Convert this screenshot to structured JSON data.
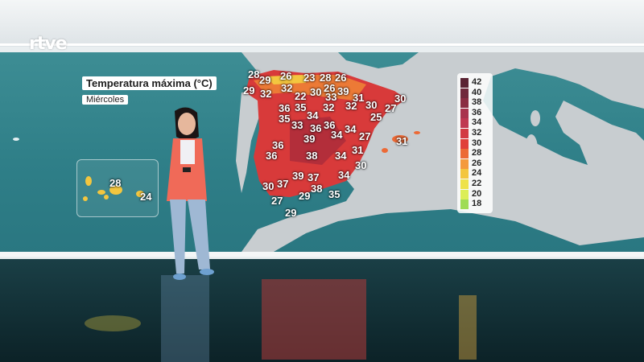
{
  "brand": {
    "logo": "rtve"
  },
  "map": {
    "title": "Temperatura máxima",
    "unit": "(°C)",
    "day": "Miércoles"
  },
  "temps": {
    "t1": "28",
    "t2": "26",
    "t3": "23",
    "t4": "28",
    "t5": "26",
    "t6": "29",
    "t7": "29",
    "t8": "32",
    "t9": "26",
    "t10": "39",
    "t11": "32",
    "t12": "22",
    "t13": "30",
    "t14": "33",
    "t15": "31",
    "t16": "30",
    "t17": "36",
    "t18": "35",
    "t19": "32",
    "t20": "32",
    "t21": "30",
    "t22": "27",
    "t23": "34",
    "t24": "35",
    "t25": "33",
    "t26": "36",
    "t27": "36",
    "t28": "34",
    "t29": "25",
    "t30": "39",
    "t31": "34",
    "t32": "27",
    "t33": "36",
    "t34": "31",
    "t35": "36",
    "t36": "38",
    "t37": "34",
    "t38": "31",
    "t39": "30",
    "t40": "39",
    "t41": "37",
    "t42": "34",
    "t43": "30",
    "t44": "37",
    "t45": "38",
    "t46": "35",
    "t47": "29",
    "t48": "27",
    "t49": "29",
    "canary1": "28",
    "canary2": "24"
  },
  "legend": [
    "42",
    "40",
    "38",
    "36",
    "34",
    "32",
    "30",
    "28",
    "26",
    "24",
    "22",
    "20",
    "18"
  ],
  "legend_colors": [
    "#5a2333",
    "#70293c",
    "#8a2d42",
    "#a8344d",
    "#bf3851",
    "#d23b44",
    "#e0403a",
    "#ec6a36",
    "#f49a3c",
    "#f3c63f",
    "#eee24a",
    "#dcee56",
    "#9fdc56"
  ],
  "colors": {
    "heat": "#d83a3a",
    "sea": "#2f7f88",
    "land": "#c8cdd0"
  }
}
